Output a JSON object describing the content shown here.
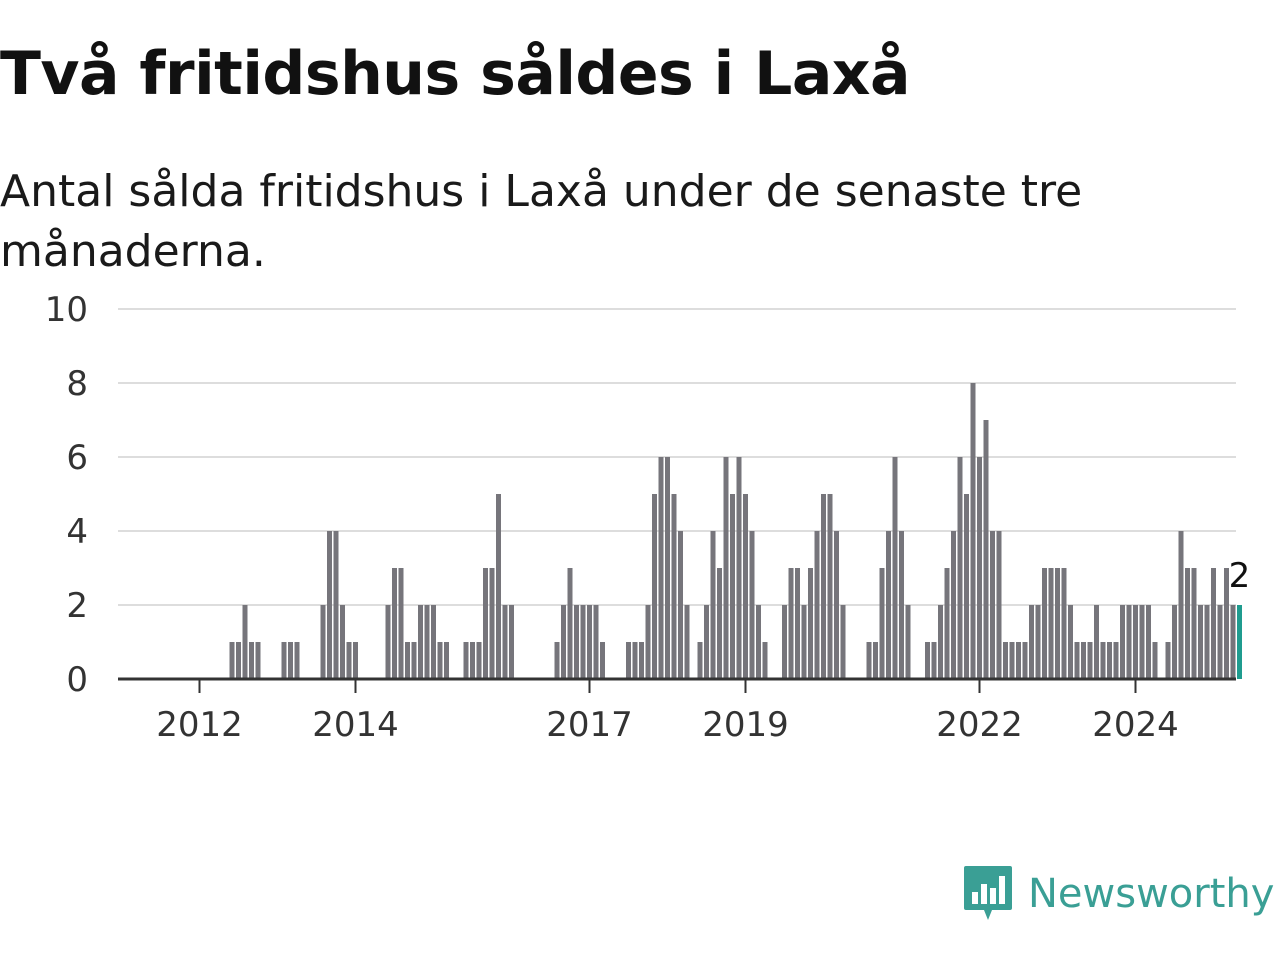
{
  "header": {
    "title": "Två fritidshus såldes i Laxå",
    "subtitle": "Antal sålda fritidshus i Laxå under de senaste tre månaderna."
  },
  "brand": {
    "name": "Newsworthy",
    "color": "#3a9f95",
    "icon": "newsworthy-logo-icon"
  },
  "colors": {
    "bar": "#76757b",
    "highlight": "#1f9c8f",
    "grid": "#dddddd",
    "axis": "#333333"
  },
  "chart_data": {
    "type": "bar",
    "ylim": [
      0,
      10
    ],
    "yticks": [
      0,
      2,
      4,
      6,
      8,
      10
    ],
    "grid": true,
    "x_tick_labels": [
      "2012",
      "2014",
      "2017",
      "2019",
      "2022",
      "2024"
    ],
    "x_tick_months": [
      "2012-01",
      "2014-01",
      "2017-01",
      "2019-01",
      "2022-01",
      "2024-01"
    ],
    "start_month": "2011-01",
    "values": [
      0,
      0,
      0,
      0,
      0,
      0,
      0,
      0,
      0,
      0,
      0,
      0,
      0,
      0,
      0,
      0,
      0,
      1,
      1,
      2,
      1,
      1,
      0,
      0,
      0,
      1,
      1,
      1,
      0,
      0,
      0,
      2,
      4,
      4,
      2,
      1,
      1,
      0,
      0,
      0,
      0,
      2,
      3,
      3,
      1,
      1,
      2,
      2,
      2,
      1,
      1,
      0,
      0,
      1,
      1,
      1,
      3,
      3,
      5,
      2,
      2,
      0,
      0,
      0,
      0,
      0,
      0,
      1,
      2,
      3,
      2,
      2,
      2,
      2,
      1,
      0,
      0,
      0,
      1,
      1,
      1,
      2,
      5,
      6,
      6,
      5,
      4,
      2,
      0,
      1,
      2,
      4,
      3,
      6,
      5,
      6,
      5,
      4,
      2,
      1,
      0,
      0,
      2,
      3,
      3,
      2,
      3,
      4,
      5,
      5,
      4,
      2,
      0,
      0,
      0,
      1,
      1,
      3,
      4,
      6,
      4,
      2,
      0,
      0,
      1,
      1,
      2,
      3,
      4,
      6,
      5,
      8,
      6,
      7,
      4,
      4,
      1,
      1,
      1,
      1,
      2,
      2,
      3,
      3,
      3,
      3,
      2,
      1,
      1,
      1,
      2,
      1,
      1,
      1,
      2,
      2,
      2,
      2,
      2,
      1,
      0,
      1,
      2,
      4,
      3,
      3,
      2,
      2,
      3,
      2,
      3,
      2,
      2
    ],
    "highlight_value_label": "2"
  }
}
